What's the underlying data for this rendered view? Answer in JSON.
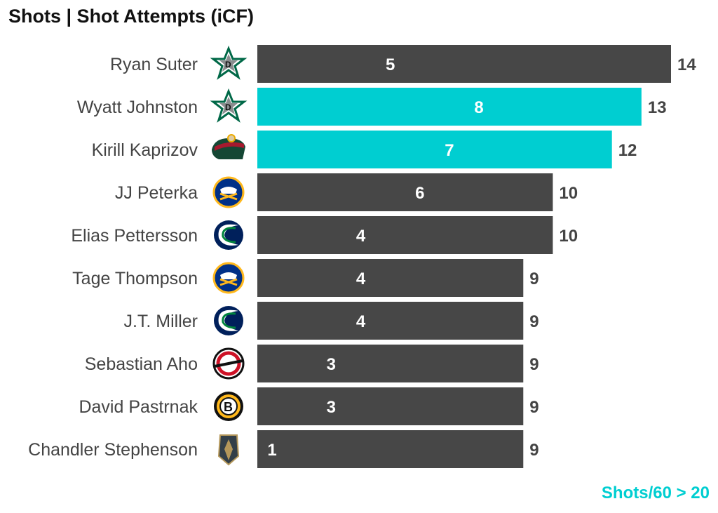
{
  "chart_data": {
    "type": "bar",
    "orientation": "horizontal",
    "title": "Shots | Shot Attempts (iCF)",
    "caption": "Shots/60 > 20",
    "categories": [
      "Ryan Suter",
      "Wyatt Johnston",
      "Kirill Kaprizov",
      "JJ Peterka",
      "Elias Pettersson",
      "Tage Thompson",
      "J.T. Miller",
      "Sebastian Aho",
      "David Pastrnak",
      "Chandler Stephenson"
    ],
    "teams": [
      "DAL",
      "DAL",
      "MIN",
      "BUF",
      "VAN",
      "BUF",
      "VAN",
      "CAR",
      "BOS",
      "VGK"
    ],
    "series": [
      {
        "name": "Shot Attempts (iCF)",
        "values": [
          14,
          13,
          12,
          10,
          10,
          9,
          9,
          9,
          9,
          9
        ]
      },
      {
        "name": "Shots",
        "values": [
          5,
          8,
          7,
          6,
          4,
          4,
          4,
          3,
          3,
          1
        ]
      }
    ],
    "highlight": [
      false,
      true,
      true,
      false,
      false,
      false,
      false,
      false,
      false,
      false
    ],
    "colors": {
      "default": "#474747",
      "highlight": "#00CED1"
    },
    "xlim": [
      0,
      14
    ]
  }
}
